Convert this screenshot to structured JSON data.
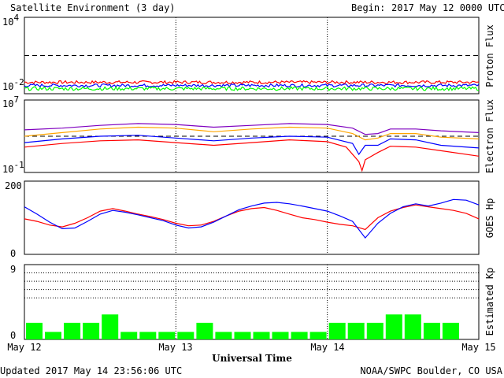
{
  "header": {
    "title": "Satellite Environment (3 day)",
    "begin_label": "Begin:",
    "begin_value": "2017 May 12 0000 UTC"
  },
  "footer": {
    "updated": "Updated 2017 May 14 23:56:06 UTC",
    "credit": "NOAA/SWPC Boulder, CO USA",
    "xaxis_title": "Universal Time"
  },
  "x_ticks": [
    "May 12",
    "May 13",
    "May 14",
    "May 15"
  ],
  "colors": {
    "red": "#ff0000",
    "blue": "#0000ff",
    "green": "#00ff00",
    "purple": "#7f00bf",
    "orange": "#ffa500",
    "kp_bar": "#00ff00"
  },
  "chart_data": [
    {
      "type": "line",
      "ylabel": "Proton Flux",
      "yscale": "log",
      "ylim_exp": [
        -2,
        4
      ],
      "y_ticks": [
        {
          "base": "10",
          "exp": "4"
        },
        {
          "base": "10",
          "exp": "-2"
        }
      ],
      "threshold_exp": 1,
      "x_hours": [
        0,
        72
      ],
      "series": [
        {
          "color": "#ff0000",
          "mean_exp": -1.1,
          "noise": 0.12
        },
        {
          "color": "#0000ff",
          "mean_exp": -1.35,
          "noise": 0.12
        },
        {
          "color": "#00ff00",
          "mean_exp": -1.6,
          "noise": 0.14
        }
      ]
    },
    {
      "type": "line",
      "ylabel": "Electron Flux",
      "yscale": "log",
      "ylim_exp": [
        -1,
        7
      ],
      "y_ticks": [
        {
          "base": "10",
          "exp": "7"
        },
        {
          "base": "10",
          "exp": "-1"
        }
      ],
      "threshold_exp": 3,
      "series": [
        {
          "color": "#7f00bf",
          "x": [
            0,
            6,
            12,
            18,
            24,
            30,
            36,
            42,
            48,
            52,
            54,
            56,
            58,
            62,
            66,
            72
          ],
          "y_exp": [
            3.7,
            3.9,
            4.2,
            4.4,
            4.3,
            4.0,
            4.2,
            4.4,
            4.3,
            3.9,
            3.2,
            3.3,
            3.8,
            3.8,
            3.6,
            3.4
          ]
        },
        {
          "color": "#ffa500",
          "x": [
            0,
            6,
            12,
            18,
            24,
            30,
            36,
            42,
            48,
            52,
            54,
            56,
            58,
            62,
            66,
            72
          ],
          "y_exp": [
            3.0,
            3.4,
            3.8,
            4.0,
            3.9,
            3.5,
            3.8,
            4.0,
            3.9,
            3.3,
            2.6,
            2.8,
            3.3,
            3.3,
            2.9,
            2.7
          ]
        },
        {
          "color": "#0000ff",
          "x": [
            0,
            6,
            12,
            18,
            24,
            30,
            36,
            42,
            48,
            52,
            53,
            54,
            56,
            58,
            62,
            66,
            72
          ],
          "y_exp": [
            2.3,
            2.7,
            3.0,
            3.1,
            2.8,
            2.5,
            2.8,
            3.0,
            2.9,
            2.2,
            1.0,
            2.0,
            2.0,
            2.7,
            2.6,
            2.0,
            1.7
          ]
        },
        {
          "color": "#ff0000",
          "x": [
            0,
            6,
            12,
            18,
            24,
            30,
            36,
            42,
            48,
            51,
            53,
            53.5,
            54,
            56,
            58,
            62,
            66,
            72
          ],
          "y_exp": [
            1.8,
            2.2,
            2.5,
            2.6,
            2.3,
            2.0,
            2.3,
            2.6,
            2.4,
            1.8,
            0.2,
            -0.8,
            0.4,
            1.2,
            1.9,
            1.8,
            1.4,
            0.8
          ]
        }
      ]
    },
    {
      "type": "line",
      "ylabel": "GOES Hp",
      "ylim": [
        0,
        200
      ],
      "y_ticks": [
        "200",
        "0"
      ],
      "series": [
        {
          "color": "#ff0000",
          "x": [
            0,
            2,
            4,
            6,
            8,
            10,
            12,
            14,
            16,
            18,
            20,
            22,
            24,
            26,
            28,
            30,
            32,
            34,
            36,
            38,
            40,
            42,
            44,
            46,
            48,
            50,
            52,
            54,
            56,
            58,
            60,
            62,
            64,
            66,
            68,
            70,
            72
          ],
          "y": [
            97,
            90,
            80,
            75,
            85,
            100,
            118,
            125,
            118,
            110,
            103,
            95,
            85,
            78,
            80,
            90,
            105,
            118,
            125,
            128,
            120,
            110,
            100,
            95,
            88,
            82,
            78,
            68,
            100,
            118,
            128,
            135,
            130,
            125,
            120,
            112,
            97
          ]
        },
        {
          "color": "#0000ff",
          "x": [
            0,
            2,
            4,
            6,
            8,
            10,
            12,
            14,
            16,
            18,
            20,
            22,
            24,
            26,
            28,
            30,
            32,
            34,
            36,
            38,
            40,
            42,
            44,
            46,
            48,
            50,
            52,
            54,
            56,
            58,
            60,
            62,
            64,
            66,
            68,
            70,
            72
          ],
          "y": [
            130,
            110,
            88,
            70,
            72,
            90,
            110,
            120,
            115,
            108,
            100,
            92,
            80,
            72,
            75,
            88,
            105,
            122,
            132,
            140,
            142,
            138,
            132,
            125,
            118,
            105,
            90,
            45,
            85,
            112,
            130,
            138,
            132,
            140,
            150,
            148,
            135
          ]
        }
      ]
    },
    {
      "type": "bar",
      "ylabel": "Estimated Kp",
      "ylim": [
        0,
        9
      ],
      "y_ticks": [
        "9",
        "0"
      ],
      "grid_levels": [
        5,
        6,
        7,
        8,
        9
      ],
      "interval_hours": 3,
      "values": [
        2,
        0.9,
        2,
        2,
        3,
        0.9,
        0.9,
        0.9,
        0.9,
        2,
        0.9,
        0.9,
        0.9,
        0.9,
        0.9,
        0.9,
        2,
        2,
        2,
        3,
        3,
        2,
        2
      ]
    }
  ]
}
